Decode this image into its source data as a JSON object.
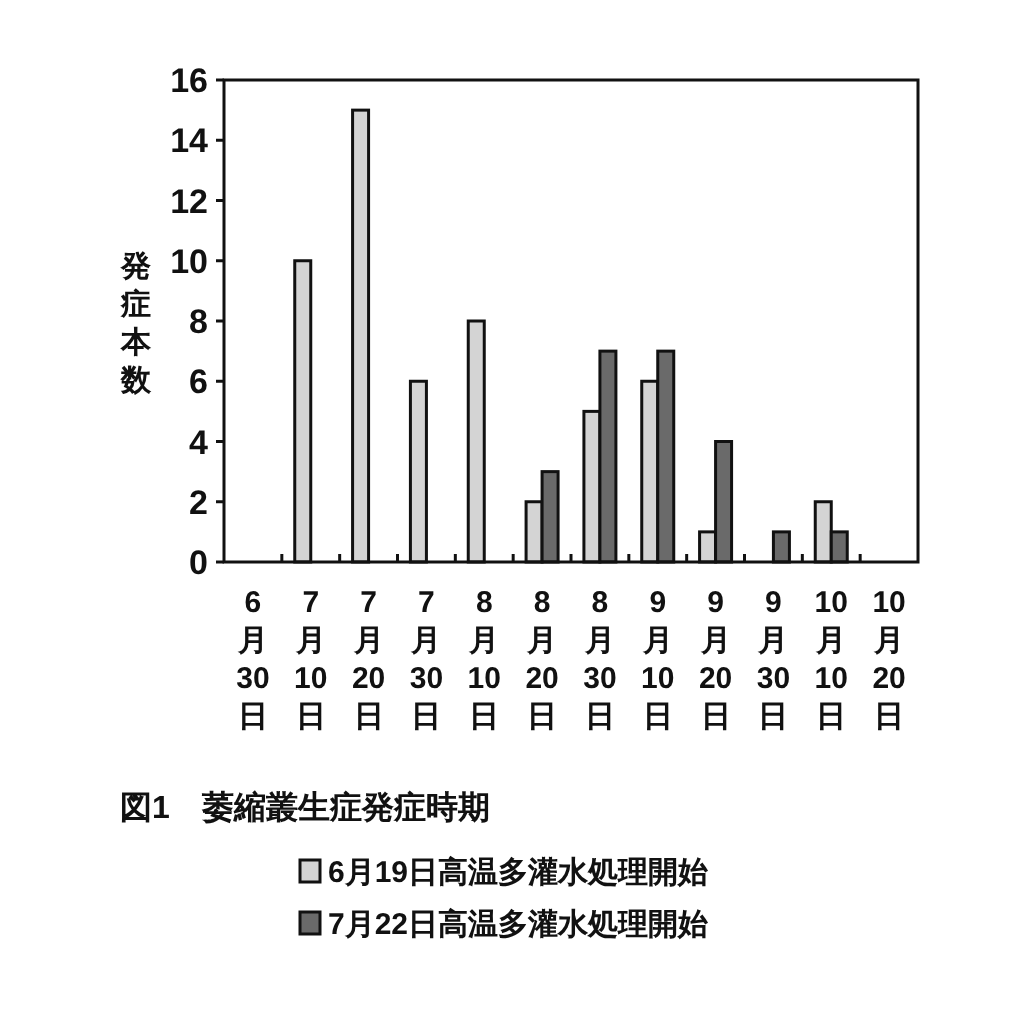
{
  "chart_data": {
    "type": "bar",
    "title": "図1　萎縮叢生症発症時期",
    "ylabel": "発症本数",
    "categories": [
      "6月30日",
      "7月10日",
      "7月20日",
      "7月30日",
      "8月10日",
      "8月20日",
      "8月30日",
      "9月10日",
      "9月20日",
      "9月30日",
      "10月10日",
      "10月20日"
    ],
    "series": [
      {
        "name": "6月19日高温多灌水処理開始",
        "color": "#d4d4d4",
        "values": [
          0,
          10,
          15,
          6,
          8,
          2,
          5,
          6,
          1,
          0,
          2,
          0
        ]
      },
      {
        "name": "7月22日高温多灌水処理開始",
        "color": "#6a6a6a",
        "values": [
          0,
          0,
          0,
          0,
          0,
          3,
          7,
          7,
          4,
          1,
          1,
          0
        ]
      }
    ],
    "ylim": [
      0,
      16
    ],
    "yticks": [
      0,
      2,
      4,
      6,
      8,
      10,
      12,
      14,
      16
    ],
    "grid": false,
    "legend": "bottom"
  }
}
